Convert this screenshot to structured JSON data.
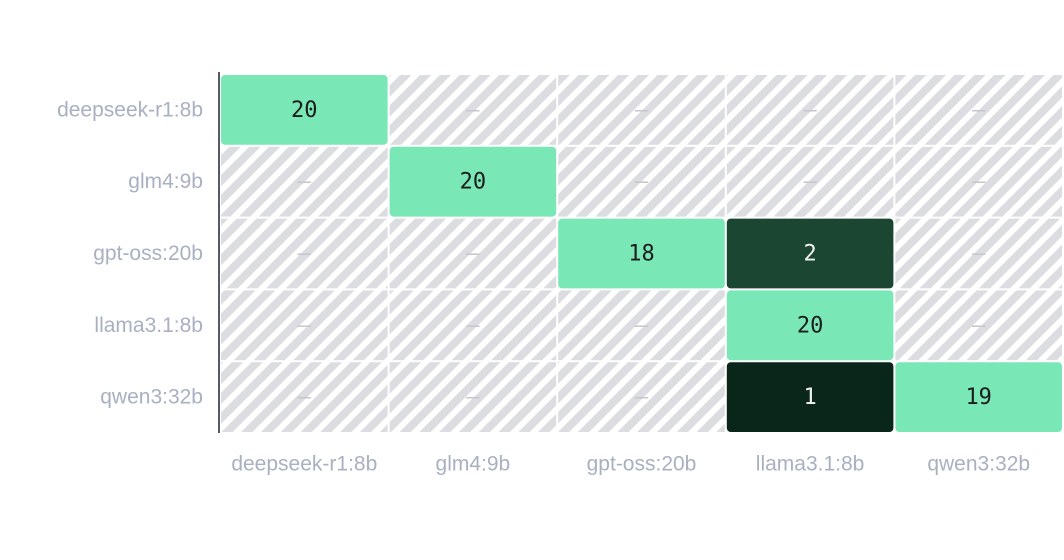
{
  "chart_data": {
    "type": "heatmap",
    "title": "",
    "xlabel": "",
    "ylabel": "",
    "rows": [
      "deepseek-r1:8b",
      "glm4:9b",
      "gpt-oss:20b",
      "llama3.1:8b",
      "qwen3:32b"
    ],
    "columns": [
      "deepseek-r1:8b",
      "glm4:9b",
      "gpt-oss:20b",
      "llama3.1:8b",
      "qwen3:32b"
    ],
    "values": [
      [
        20,
        null,
        null,
        null,
        null
      ],
      [
        null,
        20,
        null,
        null,
        null
      ],
      [
        null,
        null,
        18,
        2,
        null
      ],
      [
        null,
        null,
        null,
        20,
        null
      ],
      [
        null,
        null,
        null,
        1,
        19
      ]
    ],
    "empty_cell_text": "–",
    "colors": {
      "diagonal": "#7ae7b7",
      "off_diagonal_high": "#1a4632",
      "off_diagonal_low": "#0a251a",
      "empty_hatch": "#dcdde0",
      "text_dark": "#1c1c1c",
      "text_light": "#f2f2f2",
      "axis": "#555a66",
      "tick": "#a9b0c2"
    }
  }
}
